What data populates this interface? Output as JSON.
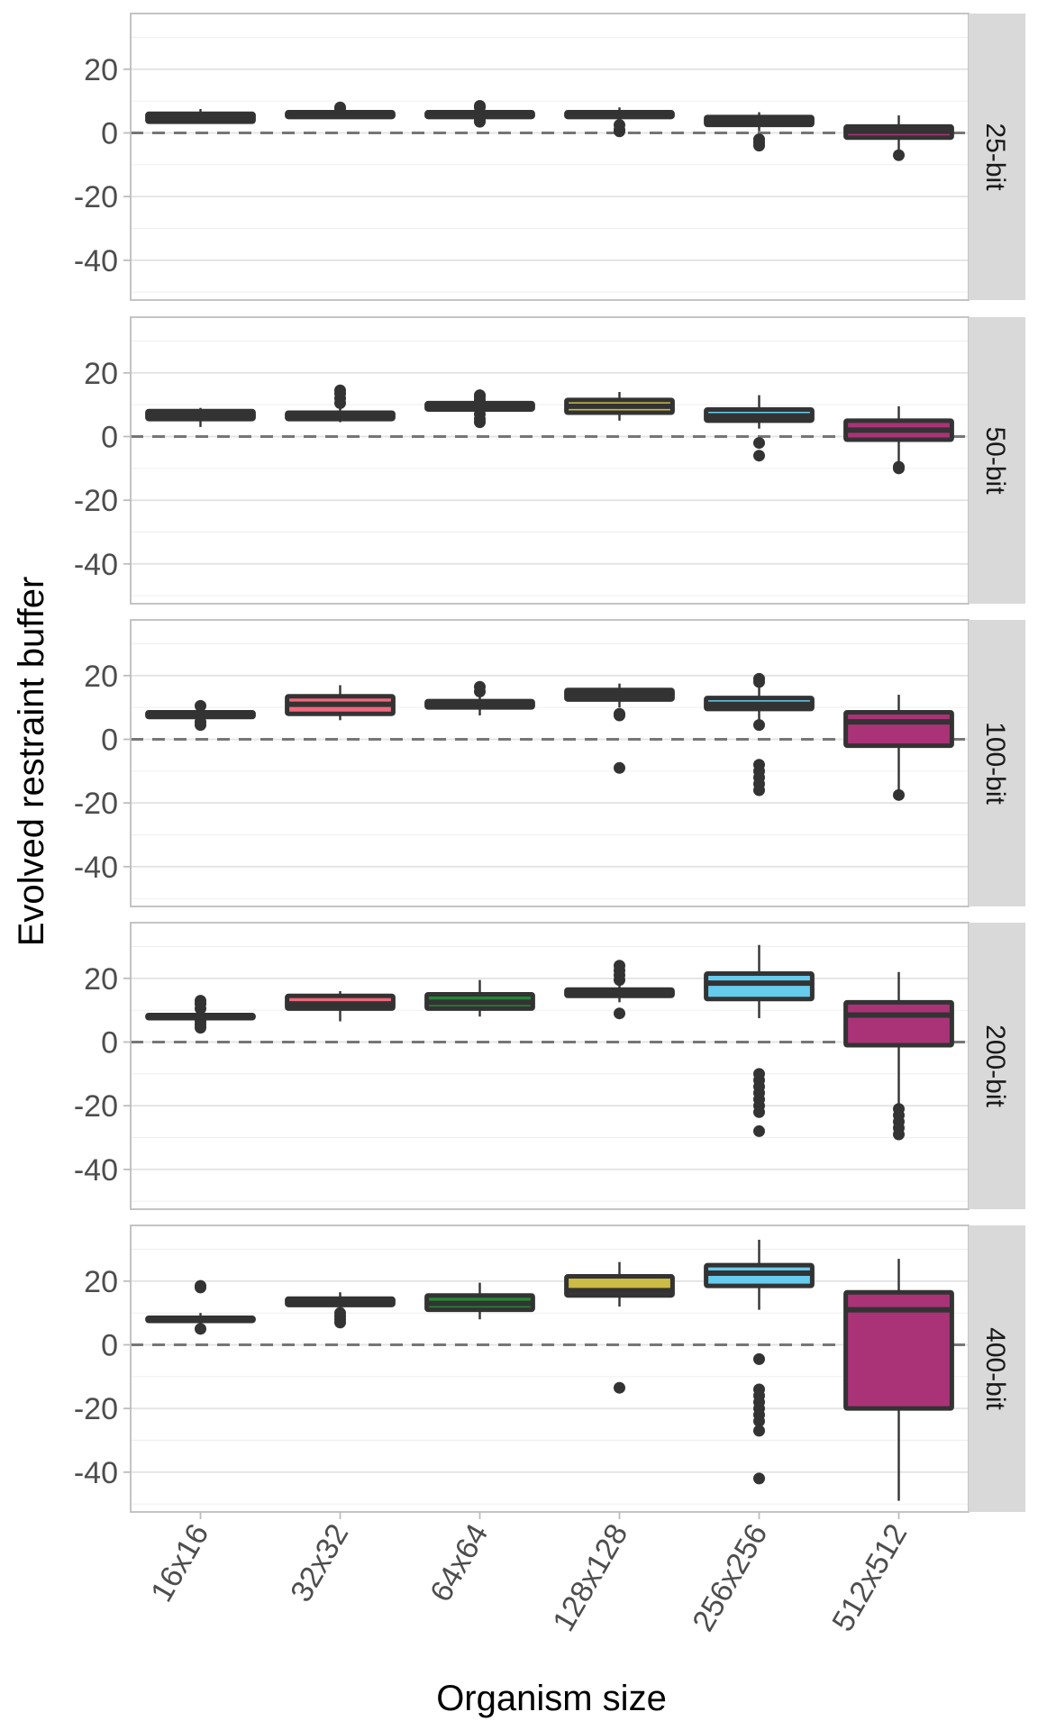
{
  "chart_data": {
    "type": "boxplot",
    "title": "",
    "xlabel": "Organism size",
    "ylabel": "Evolved restraint buffer",
    "categories": [
      "16x16",
      "32x32",
      "64x64",
      "128x128",
      "256x256",
      "512x512"
    ],
    "ylim": [
      -52.5,
      37.5
    ],
    "yticks": [
      -40,
      -20,
      0,
      20
    ],
    "ytick_labels": [
      "-40",
      "-20",
      "0",
      "20"
    ],
    "grid": true,
    "reference_line": {
      "y": 0,
      "style": "dashed"
    },
    "colors": {
      "16x16": "#3b5b92",
      "32x32": "#f0677b",
      "64x64": "#228833",
      "128x128": "#ccbb44",
      "256x256": "#66ccee",
      "512x512": "#aa3377"
    },
    "facets": [
      {
        "label": "25-bit",
        "boxes": [
          {
            "category": "16x16",
            "q1": 3.5,
            "median": 4.5,
            "q3": 6,
            "whisker_low": 3,
            "whisker_high": 7.5,
            "outliers": []
          },
          {
            "category": "32x32",
            "q1": 5,
            "median": 5.5,
            "q3": 6.5,
            "whisker_low": 4.5,
            "whisker_high": 6.5,
            "outliers": [
              7.5,
              8
            ]
          },
          {
            "category": "64x64",
            "q1": 5,
            "median": 5.5,
            "q3": 6.5,
            "whisker_low": 5,
            "whisker_high": 6.5,
            "outliers": [
              3.5,
              4,
              8,
              8.5
            ]
          },
          {
            "category": "128x128",
            "q1": 5,
            "median": 5.5,
            "q3": 6.5,
            "whisker_low": 3,
            "whisker_high": 8,
            "outliers": [
              0.5,
              1,
              2.5
            ]
          },
          {
            "category": "256x256",
            "q1": 2.5,
            "median": 3.5,
            "q3": 5,
            "whisker_low": 0.5,
            "whisker_high": 6.5,
            "outliers": [
              -2,
              -3,
              -4
            ]
          },
          {
            "category": "512x512",
            "q1": -1.5,
            "median": 0.5,
            "q3": 2,
            "whisker_low": -6.5,
            "whisker_high": 5.5,
            "outliers": [
              -7
            ]
          }
        ]
      },
      {
        "label": "50-bit",
        "boxes": [
          {
            "category": "16x16",
            "q1": 5.5,
            "median": 6.5,
            "q3": 8,
            "whisker_low": 3,
            "whisker_high": 9,
            "outliers": []
          },
          {
            "category": "32x32",
            "q1": 5.5,
            "median": 6.5,
            "q3": 7.5,
            "whisker_low": 4.5,
            "whisker_high": 9.5,
            "outliers": [
              10.5,
              12,
              13.5,
              14.5
            ]
          },
          {
            "category": "64x64",
            "q1": 8.5,
            "median": 9.5,
            "q3": 10.5,
            "whisker_low": 8.5,
            "whisker_high": 10.5,
            "outliers": [
              4.5,
              5.5,
              7,
              11.5,
              12.5,
              13
            ]
          },
          {
            "category": "128x128",
            "q1": 7.5,
            "median": 9.5,
            "q3": 11.5,
            "whisker_low": 5,
            "whisker_high": 14,
            "outliers": []
          },
          {
            "category": "256x256",
            "q1": 5,
            "median": 6.5,
            "q3": 8.5,
            "whisker_low": 2.5,
            "whisker_high": 13,
            "outliers": [
              -2,
              -6
            ]
          },
          {
            "category": "512x512",
            "q1": -1,
            "median": 2,
            "q3": 5,
            "whisker_low": -9,
            "whisker_high": 9.5,
            "outliers": [
              -9.5,
              -10
            ]
          }
        ]
      },
      {
        "label": "100-bit",
        "boxes": [
          {
            "category": "16x16",
            "q1": 7,
            "median": 7.5,
            "q3": 8.5,
            "whisker_low": 7,
            "whisker_high": 8.5,
            "outliers": [
              4.5,
              5.5,
              10.5
            ]
          },
          {
            "category": "32x32",
            "q1": 8,
            "median": 11,
            "q3": 13.5,
            "whisker_low": 6,
            "whisker_high": 17,
            "outliers": []
          },
          {
            "category": "64x64",
            "q1": 10,
            "median": 11,
            "q3": 12,
            "whisker_low": 7.5,
            "whisker_high": 14,
            "outliers": [
              15,
              16.5
            ]
          },
          {
            "category": "128x128",
            "q1": 12.5,
            "median": 14,
            "q3": 15.5,
            "whisker_low": 10,
            "whisker_high": 17.5,
            "outliers": [
              7.5,
              8,
              -9
            ]
          },
          {
            "category": "256x256",
            "q1": 9.5,
            "median": 11,
            "q3": 13,
            "whisker_low": 5.5,
            "whisker_high": 17,
            "outliers": [
              4.5,
              18,
              19,
              -8,
              -10,
              -12,
              -14,
              -16
            ]
          },
          {
            "category": "512x512",
            "q1": -2,
            "median": 5.5,
            "q3": 8.5,
            "whisker_low": -17,
            "whisker_high": 14,
            "outliers": [
              -17.5
            ]
          }
        ]
      },
      {
        "label": "200-bit",
        "boxes": [
          {
            "category": "16x16",
            "q1": 7.5,
            "median": 8,
            "q3": 8.5,
            "whisker_low": 7.5,
            "whisker_high": 8.5,
            "outliers": [
              4.5,
              5.5,
              6.5,
              10.5,
              12,
              13
            ]
          },
          {
            "category": "32x32",
            "q1": 10.5,
            "median": 12,
            "q3": 14.5,
            "whisker_low": 6.5,
            "whisker_high": 16,
            "outliers": []
          },
          {
            "category": "64x64",
            "q1": 10.5,
            "median": 12.5,
            "q3": 15,
            "whisker_low": 8,
            "whisker_high": 19.5,
            "outliers": []
          },
          {
            "category": "128x128",
            "q1": 14.5,
            "median": 15.5,
            "q3": 16.5,
            "whisker_low": 12.5,
            "whisker_high": 18,
            "outliers": [
              9,
              19.5,
              21,
              22.5,
              24
            ]
          },
          {
            "category": "256x256",
            "q1": 13.5,
            "median": 18.5,
            "q3": 21.5,
            "whisker_low": 7.5,
            "whisker_high": 30.5,
            "outliers": [
              -10,
              -12,
              -14,
              -16,
              -18,
              -20,
              -22,
              -28
            ]
          },
          {
            "category": "512x512",
            "q1": -1,
            "median": 8.5,
            "q3": 12.5,
            "whisker_low": -20.5,
            "whisker_high": 22,
            "outliers": [
              -21,
              -23,
              -25,
              -27,
              -29
            ]
          }
        ]
      },
      {
        "label": "400-bit",
        "boxes": [
          {
            "category": "16x16",
            "q1": 7.5,
            "median": 8,
            "q3": 8.5,
            "whisker_low": 7,
            "whisker_high": 10,
            "outliers": [
              5,
              18,
              18.5
            ]
          },
          {
            "category": "32x32",
            "q1": 12.5,
            "median": 13.5,
            "q3": 14.5,
            "whisker_low": 11,
            "whisker_high": 16.5,
            "outliers": [
              7,
              8,
              9,
              10
            ]
          },
          {
            "category": "64x64",
            "q1": 11,
            "median": 13,
            "q3": 15.5,
            "whisker_low": 8,
            "whisker_high": 19.5,
            "outliers": []
          },
          {
            "category": "128x128",
            "q1": 15.5,
            "median": 17,
            "q3": 21.5,
            "whisker_low": 12,
            "whisker_high": 26,
            "outliers": [
              -13.5
            ]
          },
          {
            "category": "256x256",
            "q1": 18.5,
            "median": 22.5,
            "q3": 25,
            "whisker_low": 11,
            "whisker_high": 33,
            "outliers": [
              -4.5,
              -14,
              -16,
              -18,
              -20,
              -22,
              -24,
              -27,
              -42
            ]
          },
          {
            "category": "512x512",
            "q1": -20,
            "median": 11,
            "q3": 16.5,
            "whisker_low": -49,
            "whisker_high": 27,
            "outliers": []
          }
        ]
      }
    ]
  }
}
